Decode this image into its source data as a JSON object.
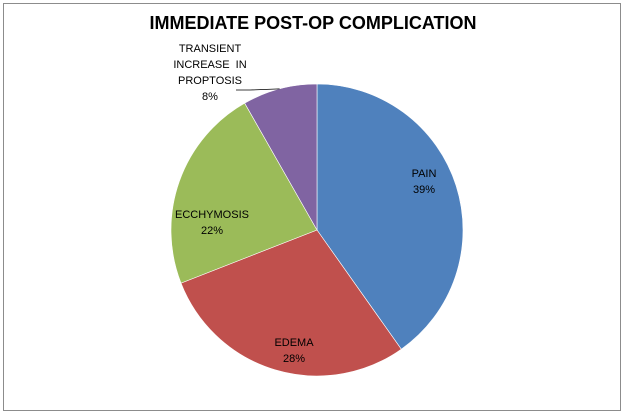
{
  "chart_data": {
    "type": "pie",
    "title": "IMMEDIATE POST-OP COMPLICATION",
    "slices": [
      {
        "label": "PAIN",
        "value": 39,
        "value_label": "39%",
        "color": "#4f81bd"
      },
      {
        "label": "EDEMA",
        "value": 28,
        "value_label": "28%",
        "color": "#c0504d"
      },
      {
        "label": "ECCHYMOSIS",
        "value": 22,
        "value_label": "22%",
        "color": "#9bbb59"
      },
      {
        "label": "TRANSIENT INCREASE IN PROPTOSIS",
        "label_lines": [
          "TRANSIENT",
          "INCREASE  IN",
          "PROPTOSIS"
        ],
        "value": 8,
        "value_label": "8%",
        "color": "#8064a2"
      }
    ],
    "legend": "none",
    "start_angle": "12 o'clock",
    "direction": "clockwise"
  }
}
